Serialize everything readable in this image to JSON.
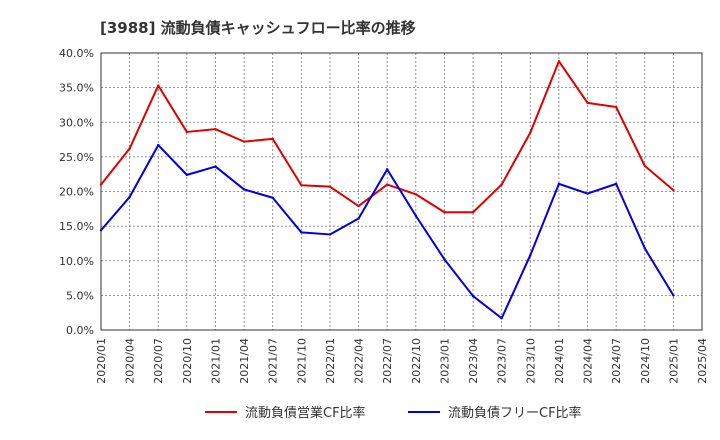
{
  "chart_data": {
    "type": "line",
    "title": "[3988]  流動負債キャッシュフロー比率の推移",
    "xlabel": "",
    "ylabel": "",
    "ylim": [
      0,
      40
    ],
    "y_ticks": [
      "0.0%",
      "5.0%",
      "10.0%",
      "15.0%",
      "20.0%",
      "25.0%",
      "30.0%",
      "35.0%",
      "40.0%"
    ],
    "x_ticks": [
      "2020/01",
      "2020/04",
      "2020/07",
      "2020/10",
      "2021/01",
      "2021/04",
      "2021/07",
      "2021/10",
      "2022/01",
      "2022/04",
      "2022/07",
      "2022/10",
      "2023/01",
      "2023/04",
      "2023/07",
      "2023/10",
      "2024/01",
      "2024/04",
      "2024/07",
      "2024/10",
      "2025/01",
      "2025/04"
    ],
    "grid": true,
    "legend_position": "bottom",
    "series": [
      {
        "name": "流動負債営業CF比率",
        "color": "#e00000",
        "values": [
          21.0,
          26.2,
          35.3,
          28.6,
          29.0,
          27.2,
          27.6,
          20.9,
          20.7,
          17.9,
          21.0,
          19.6,
          17.0,
          17.0,
          21.0,
          28.5,
          38.8,
          32.8,
          32.2,
          23.7,
          20.2
        ]
      },
      {
        "name": "流動負債フリーCF比率",
        "color": "#0000e0",
        "values": [
          14.4,
          19.2,
          26.7,
          22.4,
          23.6,
          20.3,
          19.1,
          14.1,
          13.8,
          16.1,
          23.2,
          16.5,
          10.2,
          4.9,
          1.7,
          10.8,
          21.1,
          19.7,
          21.1,
          11.8,
          5.0
        ]
      }
    ]
  }
}
